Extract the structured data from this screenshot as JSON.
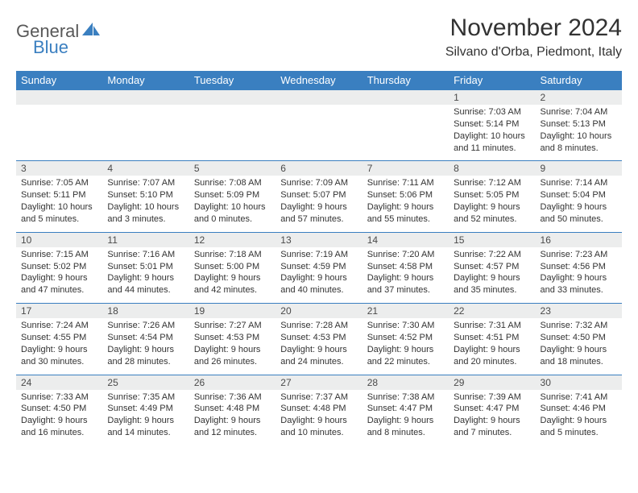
{
  "logo": {
    "text1": "General",
    "text2": "Blue"
  },
  "title": "November 2024",
  "location": "Silvano d'Orba, Piedmont, Italy",
  "colors": {
    "header_bg": "#3a7fc0",
    "header_text": "#ffffff",
    "daynum_bg": "#eceded",
    "row_border": "#3a7fc0",
    "body_text": "#333333",
    "logo_gray": "#585858",
    "logo_blue": "#3a7fc0",
    "background": "#ffffff"
  },
  "typography": {
    "title_fontsize": 30,
    "location_fontsize": 16,
    "dayheader_fontsize": 13,
    "daynum_fontsize": 12,
    "cell_fontsize": 11
  },
  "layout": {
    "columns": 7,
    "rows": 5
  },
  "weekdays": [
    "Sunday",
    "Monday",
    "Tuesday",
    "Wednesday",
    "Thursday",
    "Friday",
    "Saturday"
  ],
  "weeks": [
    [
      null,
      null,
      null,
      null,
      null,
      {
        "n": "1",
        "sr": "Sunrise: 7:03 AM",
        "ss": "Sunset: 5:14 PM",
        "dl": "Daylight: 10 hours and 11 minutes."
      },
      {
        "n": "2",
        "sr": "Sunrise: 7:04 AM",
        "ss": "Sunset: 5:13 PM",
        "dl": "Daylight: 10 hours and 8 minutes."
      }
    ],
    [
      {
        "n": "3",
        "sr": "Sunrise: 7:05 AM",
        "ss": "Sunset: 5:11 PM",
        "dl": "Daylight: 10 hours and 5 minutes."
      },
      {
        "n": "4",
        "sr": "Sunrise: 7:07 AM",
        "ss": "Sunset: 5:10 PM",
        "dl": "Daylight: 10 hours and 3 minutes."
      },
      {
        "n": "5",
        "sr": "Sunrise: 7:08 AM",
        "ss": "Sunset: 5:09 PM",
        "dl": "Daylight: 10 hours and 0 minutes."
      },
      {
        "n": "6",
        "sr": "Sunrise: 7:09 AM",
        "ss": "Sunset: 5:07 PM",
        "dl": "Daylight: 9 hours and 57 minutes."
      },
      {
        "n": "7",
        "sr": "Sunrise: 7:11 AM",
        "ss": "Sunset: 5:06 PM",
        "dl": "Daylight: 9 hours and 55 minutes."
      },
      {
        "n": "8",
        "sr": "Sunrise: 7:12 AM",
        "ss": "Sunset: 5:05 PM",
        "dl": "Daylight: 9 hours and 52 minutes."
      },
      {
        "n": "9",
        "sr": "Sunrise: 7:14 AM",
        "ss": "Sunset: 5:04 PM",
        "dl": "Daylight: 9 hours and 50 minutes."
      }
    ],
    [
      {
        "n": "10",
        "sr": "Sunrise: 7:15 AM",
        "ss": "Sunset: 5:02 PM",
        "dl": "Daylight: 9 hours and 47 minutes."
      },
      {
        "n": "11",
        "sr": "Sunrise: 7:16 AM",
        "ss": "Sunset: 5:01 PM",
        "dl": "Daylight: 9 hours and 44 minutes."
      },
      {
        "n": "12",
        "sr": "Sunrise: 7:18 AM",
        "ss": "Sunset: 5:00 PM",
        "dl": "Daylight: 9 hours and 42 minutes."
      },
      {
        "n": "13",
        "sr": "Sunrise: 7:19 AM",
        "ss": "Sunset: 4:59 PM",
        "dl": "Daylight: 9 hours and 40 minutes."
      },
      {
        "n": "14",
        "sr": "Sunrise: 7:20 AM",
        "ss": "Sunset: 4:58 PM",
        "dl": "Daylight: 9 hours and 37 minutes."
      },
      {
        "n": "15",
        "sr": "Sunrise: 7:22 AM",
        "ss": "Sunset: 4:57 PM",
        "dl": "Daylight: 9 hours and 35 minutes."
      },
      {
        "n": "16",
        "sr": "Sunrise: 7:23 AM",
        "ss": "Sunset: 4:56 PM",
        "dl": "Daylight: 9 hours and 33 minutes."
      }
    ],
    [
      {
        "n": "17",
        "sr": "Sunrise: 7:24 AM",
        "ss": "Sunset: 4:55 PM",
        "dl": "Daylight: 9 hours and 30 minutes."
      },
      {
        "n": "18",
        "sr": "Sunrise: 7:26 AM",
        "ss": "Sunset: 4:54 PM",
        "dl": "Daylight: 9 hours and 28 minutes."
      },
      {
        "n": "19",
        "sr": "Sunrise: 7:27 AM",
        "ss": "Sunset: 4:53 PM",
        "dl": "Daylight: 9 hours and 26 minutes."
      },
      {
        "n": "20",
        "sr": "Sunrise: 7:28 AM",
        "ss": "Sunset: 4:53 PM",
        "dl": "Daylight: 9 hours and 24 minutes."
      },
      {
        "n": "21",
        "sr": "Sunrise: 7:30 AM",
        "ss": "Sunset: 4:52 PM",
        "dl": "Daylight: 9 hours and 22 minutes."
      },
      {
        "n": "22",
        "sr": "Sunrise: 7:31 AM",
        "ss": "Sunset: 4:51 PM",
        "dl": "Daylight: 9 hours and 20 minutes."
      },
      {
        "n": "23",
        "sr": "Sunrise: 7:32 AM",
        "ss": "Sunset: 4:50 PM",
        "dl": "Daylight: 9 hours and 18 minutes."
      }
    ],
    [
      {
        "n": "24",
        "sr": "Sunrise: 7:33 AM",
        "ss": "Sunset: 4:50 PM",
        "dl": "Daylight: 9 hours and 16 minutes."
      },
      {
        "n": "25",
        "sr": "Sunrise: 7:35 AM",
        "ss": "Sunset: 4:49 PM",
        "dl": "Daylight: 9 hours and 14 minutes."
      },
      {
        "n": "26",
        "sr": "Sunrise: 7:36 AM",
        "ss": "Sunset: 4:48 PM",
        "dl": "Daylight: 9 hours and 12 minutes."
      },
      {
        "n": "27",
        "sr": "Sunrise: 7:37 AM",
        "ss": "Sunset: 4:48 PM",
        "dl": "Daylight: 9 hours and 10 minutes."
      },
      {
        "n": "28",
        "sr": "Sunrise: 7:38 AM",
        "ss": "Sunset: 4:47 PM",
        "dl": "Daylight: 9 hours and 8 minutes."
      },
      {
        "n": "29",
        "sr": "Sunrise: 7:39 AM",
        "ss": "Sunset: 4:47 PM",
        "dl": "Daylight: 9 hours and 7 minutes."
      },
      {
        "n": "30",
        "sr": "Sunrise: 7:41 AM",
        "ss": "Sunset: 4:46 PM",
        "dl": "Daylight: 9 hours and 5 minutes."
      }
    ]
  ]
}
